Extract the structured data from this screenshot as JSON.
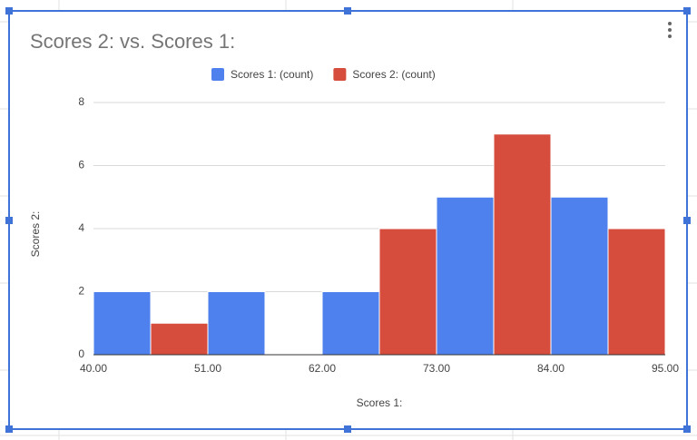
{
  "chart_data": {
    "type": "histogram",
    "title": "Scores 2: vs. Scores 1:",
    "x_label": "Scores 1:",
    "y_label": "Scores 2:",
    "bins": [
      40,
      51,
      62,
      73,
      84,
      95
    ],
    "series": [
      {
        "name": "Scores 1: (count)",
        "color": "#4f81ee",
        "values": [
          2,
          2,
          2,
          5,
          5
        ]
      },
      {
        "name": "Scores 2: (count)",
        "color": "#d64d3d",
        "values": [
          1,
          0,
          4,
          7,
          4
        ]
      }
    ],
    "xlim": [
      40,
      95
    ],
    "xticks": [
      {
        "value": 40,
        "label": "40.00"
      },
      {
        "value": 51,
        "label": "51.00"
      },
      {
        "value": 62,
        "label": "62.00"
      },
      {
        "value": 73,
        "label": "73.00"
      },
      {
        "value": 84,
        "label": "84.00"
      },
      {
        "value": 95,
        "label": "95.00"
      }
    ],
    "ylim": [
      0,
      8
    ],
    "yticks": [
      0,
      2,
      4,
      6,
      8
    ],
    "grid": true,
    "legend": "top"
  }
}
